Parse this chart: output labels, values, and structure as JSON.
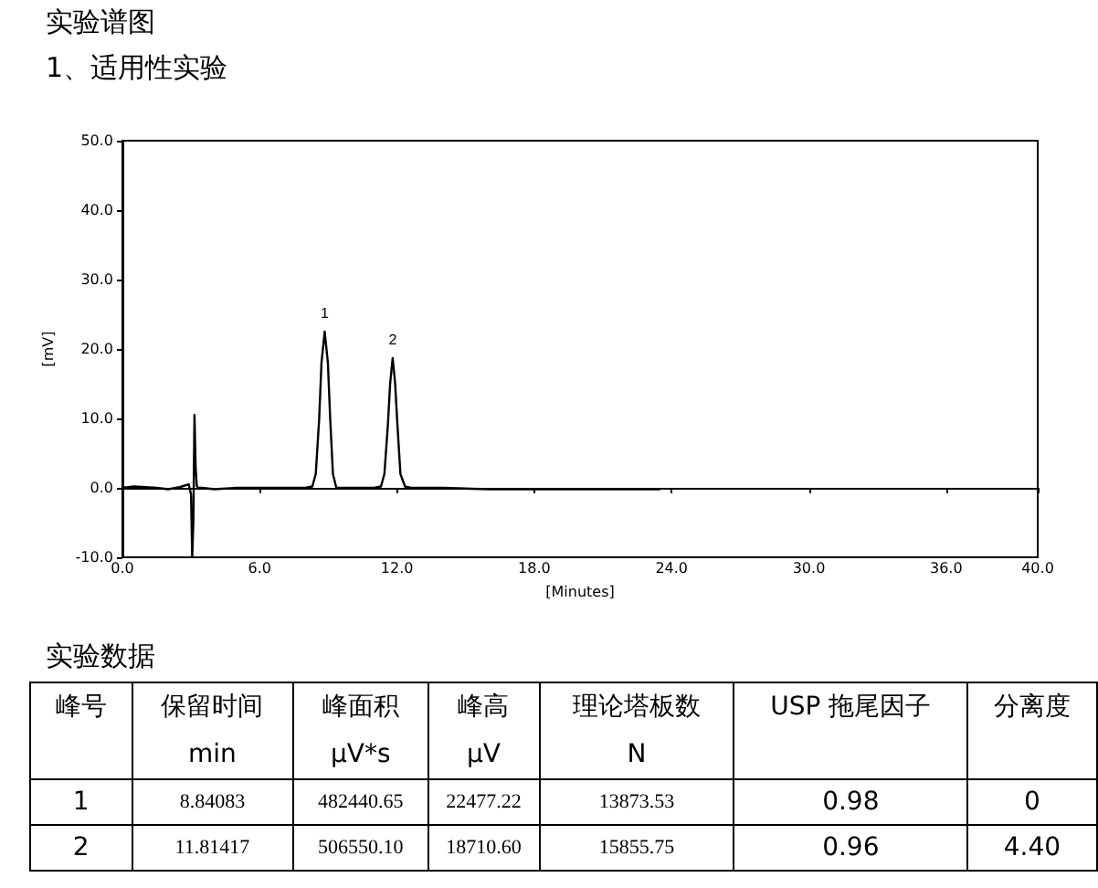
{
  "chart_data": {
    "type": "line",
    "title": "实验谱图",
    "subtitle": "1、适用性实验",
    "xlabel": "[Minutes]",
    "ylabel": "[mV]",
    "color": "#000000",
    "marker": "none",
    "x": [
      0,
      0.5,
      1,
      1.5,
      2,
      2.5,
      2.9,
      3.0,
      3.05,
      3.1,
      3.15,
      3.2,
      3.25,
      3.3,
      3.5,
      4,
      5,
      6,
      7,
      8,
      8.3,
      8.45,
      8.6,
      8.7,
      8.84,
      8.98,
      9.08,
      9.2,
      9.35,
      9.6,
      10,
      11,
      11.3,
      11.45,
      11.6,
      11.7,
      11.81,
      11.92,
      12.02,
      12.15,
      12.35,
      12.6,
      13,
      14,
      16,
      18,
      20,
      22,
      23.5
    ],
    "values": [
      0,
      0.2,
      0.1,
      0,
      -0.2,
      0.1,
      0.5,
      -1,
      -10,
      -5,
      10.5,
      3,
      0.3,
      0,
      0,
      -0.2,
      0,
      0,
      0,
      0,
      0.2,
      2,
      10,
      18,
      22.5,
      18,
      10,
      2,
      0,
      0,
      0,
      0,
      0.2,
      2,
      9,
      15,
      18.7,
      15,
      9,
      2,
      0.2,
      0,
      0,
      0,
      -0.2,
      -0.2,
      -0.2,
      -0.2,
      -0.2
    ],
    "xlim": [
      0,
      40
    ],
    "xticks": [
      {
        "value": 0,
        "label": "0.0"
      },
      {
        "value": 6,
        "label": "6.0"
      },
      {
        "value": 12,
        "label": "12.0"
      },
      {
        "value": 18,
        "label": "18.0"
      },
      {
        "value": 24,
        "label": "24.0"
      },
      {
        "value": 30,
        "label": "30.0"
      },
      {
        "value": 36,
        "label": "36.0"
      },
      {
        "value": 40,
        "label": "40.0"
      }
    ],
    "ylim": [
      -10,
      50
    ],
    "yticks": [
      {
        "value": -10,
        "label": "-10.0"
      },
      {
        "value": 0,
        "label": "0.0"
      },
      {
        "value": 10,
        "label": "10.0"
      },
      {
        "value": 20,
        "label": "20.0"
      },
      {
        "value": 30,
        "label": "30.0"
      },
      {
        "value": 40,
        "label": "40.0"
      },
      {
        "value": 50,
        "label": "50.0"
      }
    ],
    "annotations": [
      {
        "text": "1",
        "x": 8.84,
        "y": 22.5
      },
      {
        "text": "2",
        "x": 11.81,
        "y": 18.7
      },
      "实验数据",
      "峰号",
      "保留时间\nmin",
      "峰面积\nμV*s",
      "峰高\nμV",
      "理论塔板数\nN",
      "USP 拖尾因子",
      "分离度",
      "1",
      "8.84083",
      "482440.65",
      "22477.22",
      "13873.53",
      "0.98",
      "0",
      "2",
      "11.81417",
      "506550.10",
      "18710.60",
      "15855.75",
      "0.96",
      "4.40"
    ]
  }
}
